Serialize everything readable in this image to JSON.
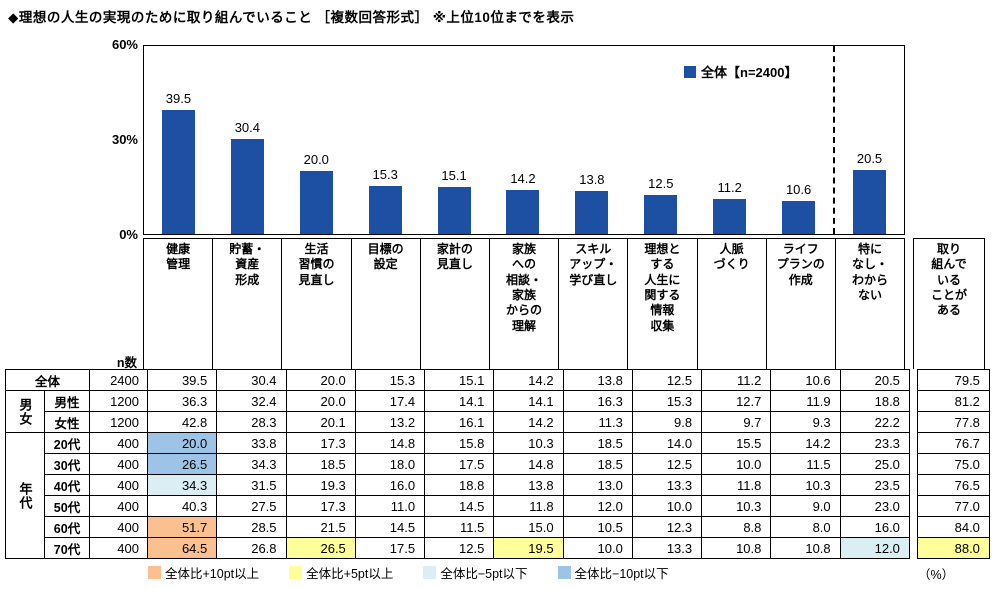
{
  "title": "◆理想の人生の実現のために取り組んでいること ［複数回答形式］ ※上位10位までを表示",
  "chart_data": {
    "type": "bar",
    "title": "理想の人生の実現のために取り組んでいること（複数回答形式・上位10位）",
    "categories": [
      "健康管理",
      "貯蓄・資産形成",
      "生活習慣の見直し",
      "目標の設定",
      "家計の見直し",
      "家族への相談・家族からの理解",
      "スキルアップ・学び直し",
      "理想とする人生に関する情報収集",
      "人脈づくり",
      "ライフプランの作成",
      "特になし・わからない"
    ],
    "values": [
      39.5,
      30.4,
      20.0,
      15.3,
      15.1,
      14.2,
      13.8,
      12.5,
      11.2,
      10.6,
      20.5
    ],
    "ylim": [
      0,
      60
    ],
    "yticks": [
      "60%",
      "30%",
      "0%"
    ],
    "legend": "全体【n=2400】",
    "legend_position": "top-right",
    "bar_color": "#1D50A2",
    "separator_before_index": 10,
    "grid": false
  },
  "table": {
    "n_header": "n数",
    "col_headers": [
      "健康\n管理",
      "貯蓄・\n資産\n形成",
      "生活\n習慣の\n見直し",
      "目標の\n設定",
      "家計の\n見直し",
      "家族\nへの\n相談・\n家族\nからの\n理解",
      "スキル\nアップ・\n学び直し",
      "理想と\nする\n人生に\n関する\n情報\n収集",
      "人脈\nづくり",
      "ライフ\nプランの\n作成",
      "特に\nなし・\nわから\nない"
    ],
    "extra_header": "取り\n組んで\nいる\nことが\nある",
    "groups": [
      {
        "label": "",
        "rows": [
          {
            "label": "全体",
            "n": "2400",
            "values": [
              "39.5",
              "30.4",
              "20.0",
              "15.3",
              "15.1",
              "14.2",
              "13.8",
              "12.5",
              "11.2",
              "10.6",
              "20.5"
            ],
            "extra": "79.5"
          }
        ]
      },
      {
        "label": "男女",
        "rows": [
          {
            "label": "男性",
            "n": "1200",
            "values": [
              "36.3",
              "32.4",
              "20.0",
              "17.4",
              "14.1",
              "14.1",
              "16.3",
              "15.3",
              "12.7",
              "11.9",
              "18.8"
            ],
            "extra": "81.2"
          },
          {
            "label": "女性",
            "n": "1200",
            "values": [
              "42.8",
              "28.3",
              "20.1",
              "13.2",
              "16.1",
              "14.2",
              "11.3",
              "9.8",
              "9.7",
              "9.3",
              "22.2"
            ],
            "extra": "77.8"
          }
        ]
      },
      {
        "label": "年代",
        "rows": [
          {
            "label": "20代",
            "n": "400",
            "values": [
              "20.0",
              "33.8",
              "17.3",
              "14.8",
              "15.8",
              "10.3",
              "18.5",
              "14.0",
              "15.5",
              "14.2",
              "23.3"
            ],
            "extra": "76.7",
            "marks": [
              "m10",
              "",
              "",
              "",
              "",
              "",
              "",
              "",
              "",
              "",
              ""
            ]
          },
          {
            "label": "30代",
            "n": "400",
            "values": [
              "26.5",
              "34.3",
              "18.5",
              "18.0",
              "17.5",
              "14.8",
              "18.5",
              "12.5",
              "10.0",
              "11.5",
              "25.0"
            ],
            "extra": "75.0",
            "marks": [
              "m10",
              "",
              "",
              "",
              "",
              "",
              "",
              "",
              "",
              "",
              ""
            ]
          },
          {
            "label": "40代",
            "n": "400",
            "values": [
              "34.3",
              "31.5",
              "19.3",
              "16.0",
              "18.8",
              "13.8",
              "13.0",
              "13.3",
              "11.8",
              "10.3",
              "23.5"
            ],
            "extra": "76.5",
            "marks": [
              "m5",
              "",
              "",
              "",
              "",
              "",
              "",
              "",
              "",
              "",
              ""
            ]
          },
          {
            "label": "50代",
            "n": "400",
            "values": [
              "40.3",
              "27.5",
              "17.3",
              "11.0",
              "14.5",
              "11.8",
              "12.0",
              "10.0",
              "10.3",
              "9.0",
              "23.0"
            ],
            "extra": "77.0"
          },
          {
            "label": "60代",
            "n": "400",
            "values": [
              "51.7",
              "28.5",
              "21.5",
              "14.5",
              "11.5",
              "15.0",
              "10.5",
              "12.3",
              "8.8",
              "8.0",
              "16.0"
            ],
            "extra": "84.0",
            "marks": [
              "p10",
              "",
              "",
              "",
              "",
              "",
              "",
              "",
              "",
              "",
              ""
            ]
          },
          {
            "label": "70代",
            "n": "400",
            "values": [
              "64.5",
              "26.8",
              "26.5",
              "17.5",
              "12.5",
              "19.5",
              "10.0",
              "13.3",
              "10.8",
              "10.8",
              "12.0"
            ],
            "extra": "88.0",
            "marks": [
              "p10",
              "",
              "p5",
              "",
              "",
              "p5",
              "",
              "",
              "",
              "",
              "m5"
            ],
            "extra_mark": "p5"
          }
        ]
      }
    ]
  },
  "highlight_colors": {
    "p10": "#FAC090",
    "p5": "#FFFF99",
    "m5": "#DAEEF3",
    "m10": "#9DC3E6"
  },
  "footer_legend": {
    "items": [
      {
        "mark": "p10",
        "color": "#FAC090",
        "label": "全体比+10pt以上"
      },
      {
        "mark": "p5",
        "color": "#FFFF99",
        "label": "全体比+5pt以上"
      },
      {
        "mark": "m5",
        "color": "#DAEEF3",
        "label": "全体比−5pt以下"
      },
      {
        "mark": "m10",
        "color": "#9DC3E6",
        "label": "全体比−10pt以下"
      }
    ],
    "unit": "（%）"
  }
}
